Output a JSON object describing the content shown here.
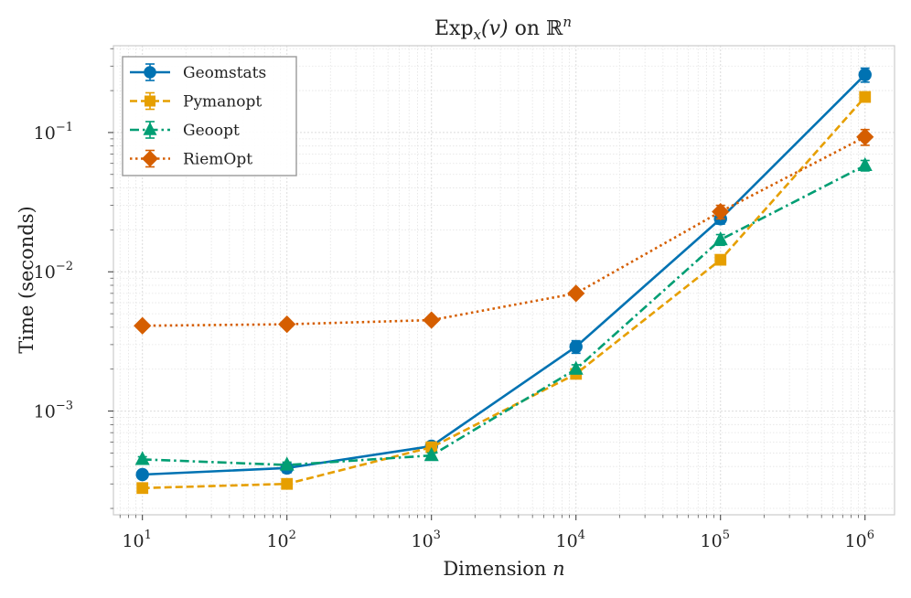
{
  "chart_data": {
    "type": "line",
    "title": {
      "prefix": "Exp",
      "sub": "x",
      "arg": "(v)",
      "middle": " on ",
      "space": "ℝ",
      "sup": "n"
    },
    "xlabel": {
      "text": "Dimension ",
      "var": "n"
    },
    "ylabel": "Time (seconds)",
    "x_scale": "log",
    "y_scale": "log",
    "xlim": [
      6.3,
      1600000.0
    ],
    "ylim": [
      0.00018,
      0.42
    ],
    "x": [
      10,
      100,
      1000,
      10000,
      100000,
      1000000
    ],
    "x_ticks": [
      {
        "value": 10,
        "base": "10",
        "exp": "1"
      },
      {
        "value": 100,
        "base": "10",
        "exp": "2"
      },
      {
        "value": 1000,
        "base": "10",
        "exp": "3"
      },
      {
        "value": 10000,
        "base": "10",
        "exp": "4"
      },
      {
        "value": 100000,
        "base": "10",
        "exp": "5"
      },
      {
        "value": 1000000,
        "base": "10",
        "exp": "6"
      }
    ],
    "y_ticks": [
      {
        "value": 0.001,
        "base": "10",
        "exp": "−3"
      },
      {
        "value": 0.01,
        "base": "10",
        "exp": "−2"
      },
      {
        "value": 0.1,
        "base": "10",
        "exp": "−1"
      }
    ],
    "grid": true,
    "legend_position": "top-left",
    "series": [
      {
        "name": "Geomstats",
        "color": "#0072b2",
        "marker": "circle",
        "dash": "solid",
        "values": [
          0.00035,
          0.00039,
          0.00056,
          0.0029,
          0.024,
          0.26
        ],
        "errors": [
          2e-05,
          3e-05,
          3e-05,
          0.0003,
          0.002,
          0.03
        ]
      },
      {
        "name": "Pymanopt",
        "color": "#e69f00",
        "marker": "square",
        "dash": "dashed",
        "values": [
          0.00028,
          0.0003,
          0.00055,
          0.00185,
          0.0122,
          0.18
        ],
        "errors": [
          1e-05,
          1e-05,
          2e-05,
          0.0001,
          0.0005,
          0.008
        ]
      },
      {
        "name": "Geoopt",
        "color": "#009e73",
        "marker": "triangle",
        "dash": "dashdot",
        "values": [
          0.00045,
          0.00041,
          0.00048,
          0.002,
          0.017,
          0.058
        ],
        "errors": [
          2e-05,
          2e-05,
          2e-05,
          0.00015,
          0.0015,
          0.005
        ]
      },
      {
        "name": "RiemOpt",
        "color": "#d55e00",
        "marker": "diamond",
        "dash": "dotted",
        "values": [
          0.0041,
          0.0042,
          0.0045,
          0.007,
          0.027,
          0.093
        ],
        "errors": [
          0.0001,
          0.0001,
          0.0001,
          0.0002,
          0.003,
          0.012
        ]
      }
    ]
  }
}
